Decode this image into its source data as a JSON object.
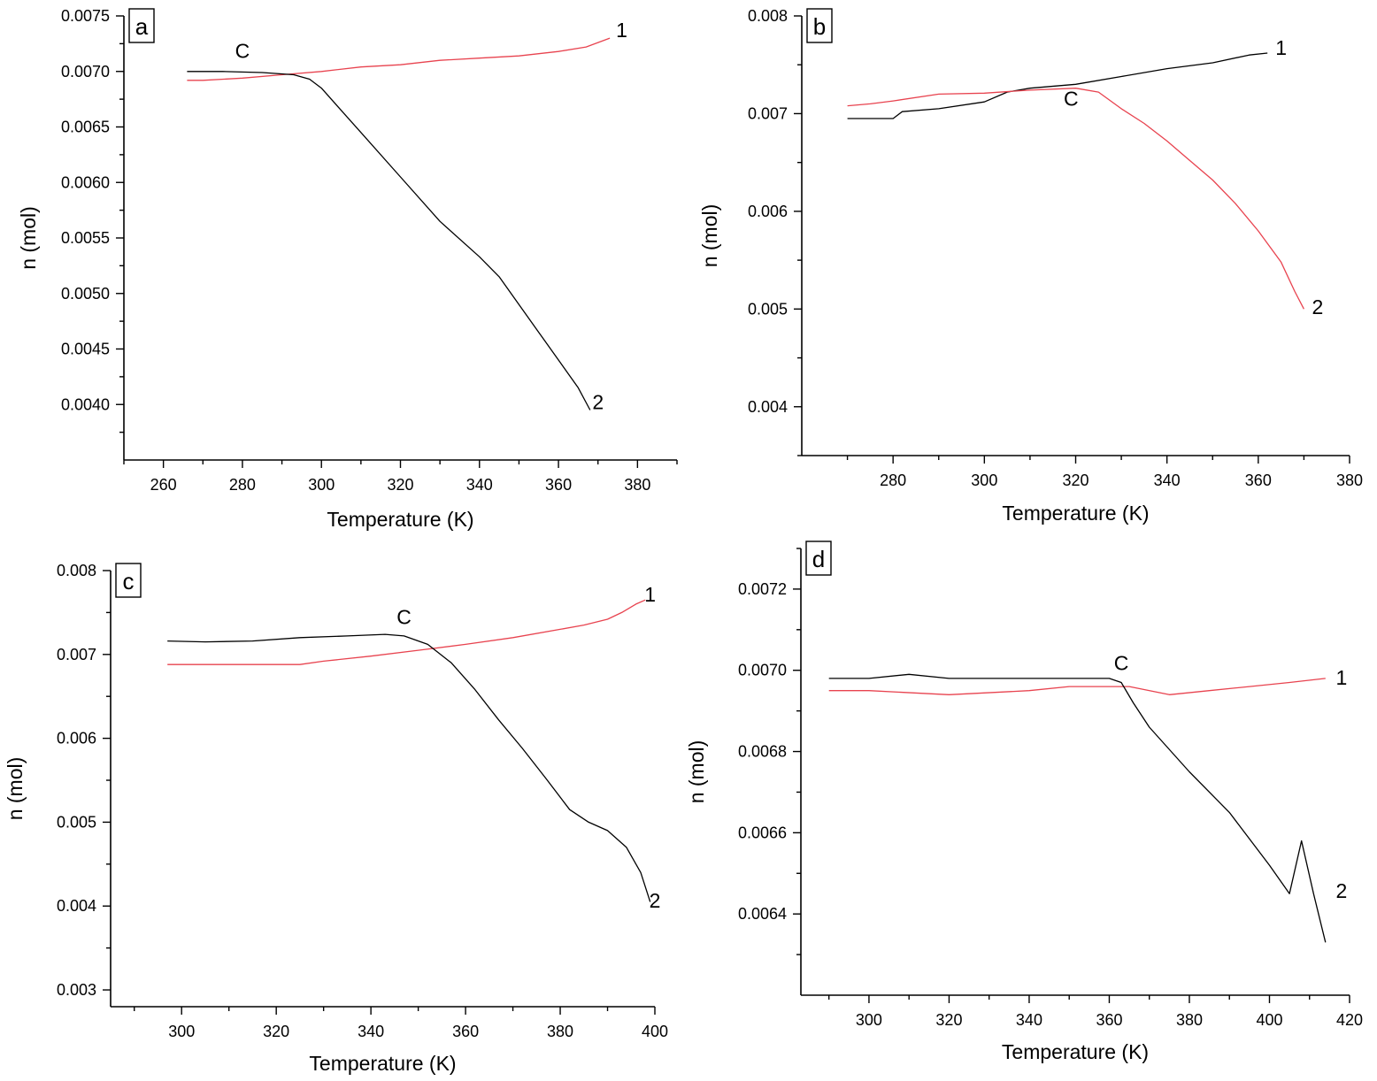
{
  "chart_data": [
    {
      "type": "line",
      "panel_label": "a",
      "xlabel": "Temperature (K)",
      "ylabel": "n (mol)",
      "xlim": [
        250,
        390
      ],
      "ylim": [
        0.0035,
        0.0075
      ],
      "xticks": [
        260,
        280,
        300,
        320,
        340,
        360,
        380
      ],
      "xtick_labels": [
        "260",
        "280",
        "300",
        "320",
        "340",
        "360",
        "380"
      ],
      "yticks": [
        0.004,
        0.0045,
        0.005,
        0.0055,
        0.006,
        0.0065,
        0.007,
        0.0075
      ],
      "ytick_labels": [
        "0.0040",
        "0.0045",
        "0.0050",
        "0.0055",
        "0.0060",
        "0.0065",
        "0.0070",
        "0.0075"
      ],
      "annotations": [
        {
          "text": "C",
          "x": 280,
          "y": 0.00712
        },
        {
          "text": "1",
          "x": 376,
          "y": 0.00731
        },
        {
          "text": "2",
          "x": 370,
          "y": 0.00396
        }
      ],
      "series": [
        {
          "name": "1",
          "color": "#e8434f",
          "x": [
            266,
            270,
            280,
            290,
            300,
            310,
            320,
            330,
            340,
            350,
            360,
            367,
            373
          ],
          "y": [
            0.00692,
            0.00692,
            0.00694,
            0.00697,
            0.007,
            0.00704,
            0.00706,
            0.0071,
            0.00712,
            0.00714,
            0.00718,
            0.00722,
            0.0073
          ]
        },
        {
          "name": "2",
          "color": "#000000",
          "x": [
            266,
            275,
            285,
            293,
            297,
            300,
            305,
            310,
            320,
            330,
            340,
            345,
            350,
            355,
            360,
            365,
            368
          ],
          "y": [
            0.007,
            0.007,
            0.00699,
            0.00697,
            0.00693,
            0.00685,
            0.00665,
            0.00645,
            0.00605,
            0.00565,
            0.00533,
            0.00515,
            0.0049,
            0.00465,
            0.0044,
            0.00415,
            0.00395
          ]
        }
      ]
    },
    {
      "type": "line",
      "panel_label": "b",
      "xlabel": "Temperature (K)",
      "ylabel": "n (mol)",
      "xlim": [
        260,
        380
      ],
      "ylim": [
        0.0035,
        0.008
      ],
      "xticks": [
        280,
        300,
        320,
        340,
        360,
        380
      ],
      "xtick_labels": [
        "280",
        "300",
        "320",
        "340",
        "360",
        "380"
      ],
      "yticks": [
        0.004,
        0.005,
        0.006,
        0.007,
        0.008
      ],
      "ytick_labels": [
        "0.004",
        "0.005",
        "0.006",
        "0.007",
        "0.008"
      ],
      "annotations": [
        {
          "text": "C",
          "x": 319,
          "y": 0.00708
        },
        {
          "text": "1",
          "x": 365,
          "y": 0.0076
        },
        {
          "text": "2",
          "x": 373,
          "y": 0.00495
        }
      ],
      "series": [
        {
          "name": "1",
          "color": "#000000",
          "x": [
            270,
            275,
            280,
            282,
            290,
            300,
            305,
            310,
            320,
            330,
            340,
            350,
            358,
            362
          ],
          "y": [
            0.00695,
            0.00695,
            0.00695,
            0.00702,
            0.00705,
            0.00712,
            0.00722,
            0.00726,
            0.0073,
            0.00738,
            0.00746,
            0.00752,
            0.0076,
            0.00762
          ]
        },
        {
          "name": "2",
          "color": "#e8434f",
          "x": [
            270,
            275,
            280,
            290,
            300,
            310,
            320,
            325,
            330,
            335,
            340,
            345,
            350,
            355,
            360,
            365,
            368,
            370
          ],
          "y": [
            0.00708,
            0.0071,
            0.00713,
            0.0072,
            0.00721,
            0.00724,
            0.00726,
            0.00722,
            0.00705,
            0.0069,
            0.00672,
            0.00652,
            0.00632,
            0.00608,
            0.0058,
            0.00548,
            0.00518,
            0.005
          ]
        }
      ]
    },
    {
      "type": "line",
      "panel_label": "c",
      "xlabel": "Temperature (K)",
      "ylabel": "n (mol)",
      "xlim": [
        285,
        400
      ],
      "ylim": [
        0.0028,
        0.008
      ],
      "xticks": [
        300,
        320,
        340,
        360,
        380,
        400
      ],
      "xtick_labels": [
        "300",
        "320",
        "340",
        "360",
        "380",
        "400"
      ],
      "yticks": [
        0.003,
        0.004,
        0.005,
        0.006,
        0.007,
        0.008
      ],
      "ytick_labels": [
        "0.003",
        "0.004",
        "0.005",
        "0.006",
        "0.007",
        "0.008"
      ],
      "annotations": [
        {
          "text": "C",
          "x": 347,
          "y": 0.00736
        },
        {
          "text": "1",
          "x": 399,
          "y": 0.00763
        },
        {
          "text": "2",
          "x": 400,
          "y": 0.00398
        }
      ],
      "series": [
        {
          "name": "1",
          "color": "#e8434f",
          "x": [
            297,
            305,
            315,
            325,
            330,
            340,
            350,
            360,
            370,
            380,
            385,
            390,
            393,
            396,
            398
          ],
          "y": [
            0.00688,
            0.00688,
            0.00688,
            0.00688,
            0.00692,
            0.00698,
            0.00705,
            0.00712,
            0.0072,
            0.0073,
            0.00735,
            0.00742,
            0.0075,
            0.0076,
            0.00765
          ]
        },
        {
          "name": "2",
          "color": "#000000",
          "x": [
            297,
            305,
            315,
            325,
            335,
            343,
            347,
            352,
            357,
            362,
            367,
            372,
            377,
            382,
            386,
            390,
            394,
            397,
            399
          ],
          "y": [
            0.00716,
            0.00715,
            0.00716,
            0.0072,
            0.00722,
            0.00724,
            0.00722,
            0.00712,
            0.0069,
            0.00658,
            0.00622,
            0.00588,
            0.00552,
            0.00515,
            0.005,
            0.0049,
            0.0047,
            0.0044,
            0.00405
          ]
        }
      ]
    },
    {
      "type": "line",
      "panel_label": "d",
      "xlabel": "Temperature (K)",
      "ylabel": "n (mol)",
      "xlim": [
        283,
        420
      ],
      "ylim": [
        0.0062,
        0.0073
      ],
      "xticks": [
        300,
        320,
        340,
        360,
        380,
        400,
        420
      ],
      "xtick_labels": [
        "300",
        "320",
        "340",
        "360",
        "380",
        "400",
        "420"
      ],
      "yticks": [
        0.0064,
        0.0066,
        0.0068,
        0.007,
        0.0072
      ],
      "ytick_labels": [
        "0.0064",
        "0.0066",
        "0.0068",
        "0.0070",
        "0.0072"
      ],
      "annotations": [
        {
          "text": "C",
          "x": 363,
          "y": 0.007
        },
        {
          "text": "1",
          "x": 418,
          "y": 0.006965
        },
        {
          "text": "2",
          "x": 418,
          "y": 0.00644
        }
      ],
      "series": [
        {
          "name": "1",
          "color": "#e8434f",
          "x": [
            290,
            300,
            320,
            340,
            350,
            360,
            365,
            375,
            385,
            395,
            405,
            414
          ],
          "y": [
            0.00695,
            0.00695,
            0.00694,
            0.00695,
            0.00696,
            0.00696,
            0.00696,
            0.00694,
            0.00695,
            0.00696,
            0.00697,
            0.00698
          ]
        },
        {
          "name": "2",
          "color": "#000000",
          "x": [
            290,
            300,
            310,
            320,
            330,
            340,
            350,
            360,
            363,
            366,
            370,
            380,
            390,
            400,
            405,
            408,
            411,
            414
          ],
          "y": [
            0.00698,
            0.00698,
            0.00699,
            0.00698,
            0.00698,
            0.00698,
            0.00698,
            0.00698,
            0.00697,
            0.00692,
            0.00686,
            0.00675,
            0.00665,
            0.00652,
            0.00645,
            0.00658,
            0.00645,
            0.00633
          ]
        }
      ]
    }
  ]
}
